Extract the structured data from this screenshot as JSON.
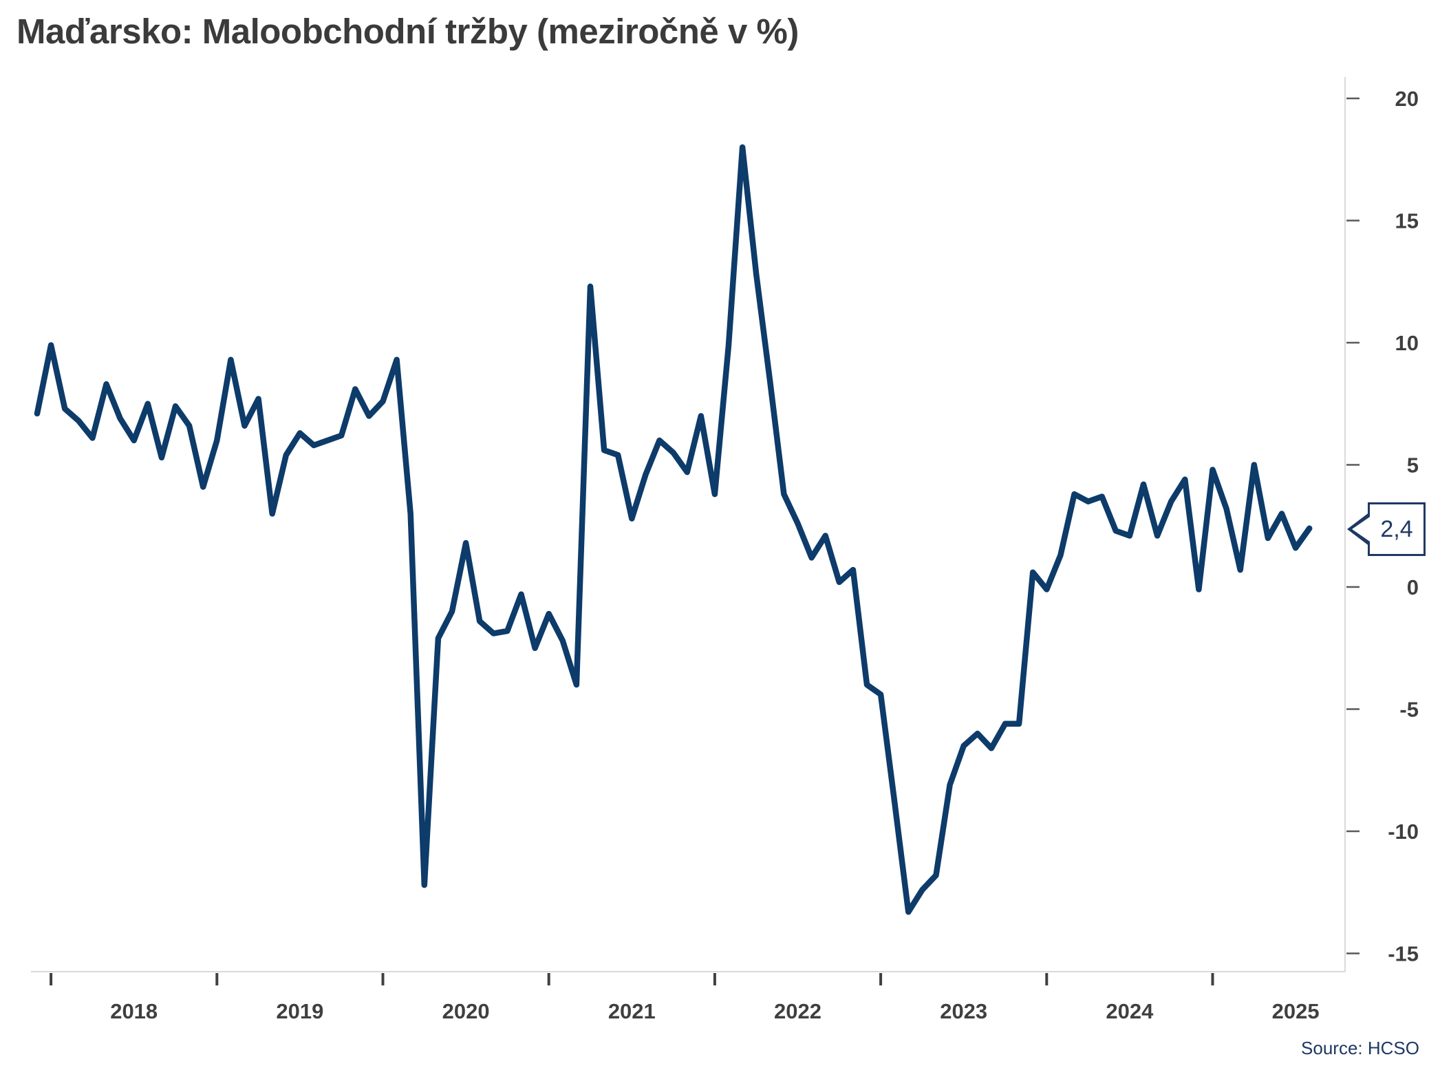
{
  "title": "Maďarsko: Maloobchodní tržby (meziročně v %)",
  "source": "Source: HCSO",
  "callout": {
    "label": "2,4"
  },
  "colors": {
    "line": "#0d3b6a",
    "accent": "#1f3864",
    "axis_line": "#d9d9d9",
    "tick_mark": "#404040",
    "tick_label": "#3f3f3f",
    "title_text": "#3b3b3b"
  },
  "chart_data": {
    "type": "line",
    "title": "Maďarsko: Maloobchodní tržby (meziročně v %)",
    "ylabel": "meziročně v %",
    "series_name": "Maloobchodní tržby, meziroční změna v %",
    "x_start": "2017-12",
    "frequency": "monthly",
    "grid": "off",
    "legend_position": "none",
    "y_axis_side": "right",
    "ylim": [
      -16.5,
      21
    ],
    "y_ticks": [
      20,
      15,
      10,
      5,
      0,
      -5,
      -10,
      -15
    ],
    "y_tick_labels": [
      "20",
      "15",
      "10",
      "5",
      "0",
      "-5",
      "-10",
      "-15"
    ],
    "x_tick_labels": [
      "2018",
      "2019",
      "2020",
      "2021",
      "2022",
      "2023",
      "2024",
      "2025"
    ],
    "last_point": {
      "date": "2025-08",
      "value": 2.4,
      "label": "2,4"
    },
    "values": [
      7.1,
      9.9,
      7.3,
      6.8,
      6.1,
      8.3,
      6.9,
      6.0,
      7.5,
      5.3,
      7.4,
      6.6,
      4.1,
      6.0,
      9.3,
      6.6,
      7.7,
      3.0,
      5.4,
      6.3,
      5.8,
      6.0,
      6.2,
      8.1,
      7.0,
      7.6,
      9.3,
      3.0,
      -12.2,
      -2.1,
      -1.0,
      1.8,
      -1.4,
      -1.9,
      -1.8,
      -0.3,
      -2.5,
      -1.1,
      -2.2,
      -4.0,
      12.3,
      5.6,
      5.4,
      2.8,
      4.6,
      6.0,
      5.5,
      4.7,
      7.0,
      3.8,
      9.9,
      18.0,
      12.8,
      8.4,
      3.8,
      2.6,
      1.2,
      2.1,
      0.2,
      0.7,
      -4.0,
      -4.4,
      -8.8,
      -13.3,
      -12.4,
      -11.8,
      -8.1,
      -6.5,
      -6.0,
      -6.6,
      -5.6,
      -5.6,
      0.6,
      -0.1,
      1.3,
      3.8,
      3.5,
      3.7,
      2.3,
      2.1,
      4.2,
      2.1,
      3.5,
      4.4,
      -0.1,
      4.8,
      3.2,
      0.7,
      5.0,
      2.0,
      3.0,
      1.6,
      2.4
    ]
  }
}
